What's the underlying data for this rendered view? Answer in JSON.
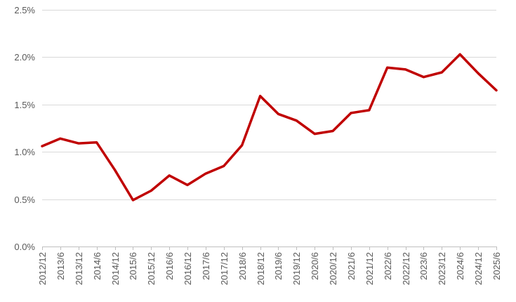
{
  "chart_data": {
    "type": "line",
    "title": "",
    "xlabel": "",
    "ylabel": "",
    "categories": [
      "2012/12",
      "2013/6",
      "2013/12",
      "2014/6",
      "2014/12",
      "2015/6",
      "2015/12",
      "2016/6",
      "2016/12",
      "2017/6",
      "2017/12",
      "2018/6",
      "2018/12",
      "2019/6",
      "2019/12",
      "2020/6",
      "2020/12",
      "2021/6",
      "2021/12",
      "2022/6",
      "2022/12",
      "2023/6",
      "2023/12",
      "2024/6",
      "2024/12",
      "2025/6"
    ],
    "series": [
      {
        "values": [
          1.06,
          1.14,
          1.09,
          1.1,
          0.81,
          0.49,
          0.59,
          0.75,
          0.65,
          0.77,
          0.85,
          1.07,
          1.59,
          1.4,
          1.33,
          1.19,
          1.22,
          1.41,
          1.44,
          1.89,
          1.87,
          1.79,
          1.84,
          2.03,
          1.83,
          1.65
        ],
        "color": "#c00000"
      }
    ],
    "ylim": [
      0,
      2.5
    ],
    "yticks": [
      0,
      0.5,
      1.0,
      1.5,
      2.0,
      2.5
    ],
    "ytick_labels": [
      "0.0%",
      "0.5%",
      "1.0%",
      "1.5%",
      "2.0%",
      "2.5%"
    ],
    "grid": true,
    "legend": "none"
  }
}
